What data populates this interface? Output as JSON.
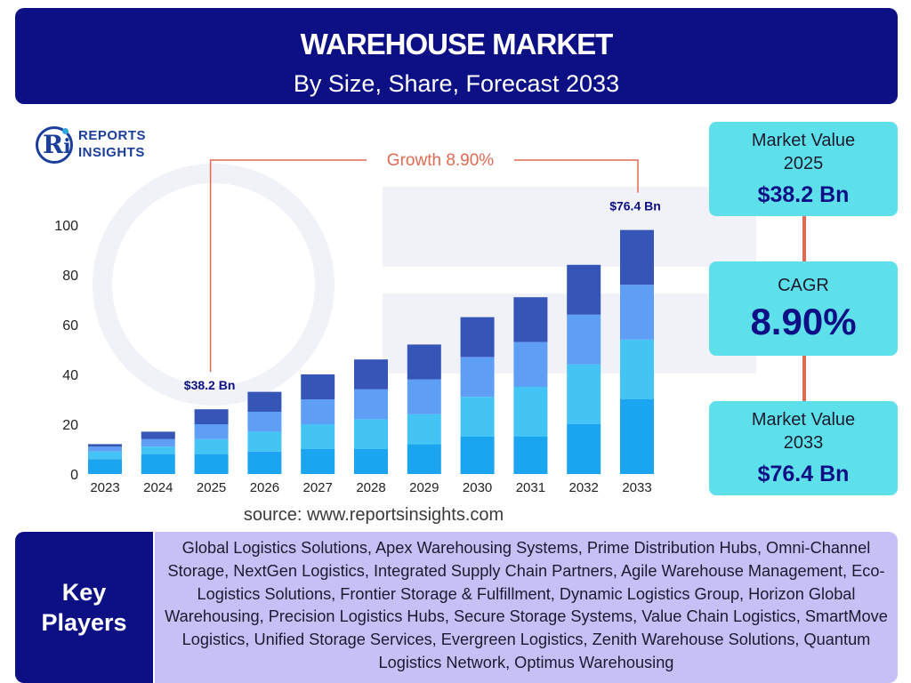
{
  "header": {
    "title": "WAREHOUSE MARKET",
    "subtitle": "By Size, Share, Forecast 2033"
  },
  "logo": {
    "line1": "REPORTS",
    "line2": "INSIGHTS",
    "monogram": "Ri"
  },
  "chart_data": {
    "type": "bar",
    "stacked": true,
    "categories": [
      "2023",
      "2024",
      "2025",
      "2026",
      "2027",
      "2028",
      "2029",
      "2030",
      "2031",
      "2032",
      "2033"
    ],
    "series": [
      {
        "values": [
          6,
          8,
          8,
          9,
          10,
          10,
          12,
          15,
          15,
          20,
          30
        ],
        "color": "#1ba4f0"
      },
      {
        "values": [
          3,
          3,
          6,
          8,
          10,
          12,
          12,
          16,
          20,
          24,
          24
        ],
        "color": "#44c4f4"
      },
      {
        "values": [
          2,
          3,
          6,
          8,
          10,
          12,
          14,
          16,
          18,
          20,
          22
        ],
        "color": "#5f9ef5"
      },
      {
        "values": [
          1,
          3,
          6,
          8,
          10,
          12,
          14,
          16,
          18,
          20,
          22
        ],
        "color": "#3556b6"
      }
    ],
    "ylim": [
      0,
      100
    ],
    "yticks": [
      0,
      20,
      40,
      60,
      80,
      100
    ],
    "grid": false,
    "legend": "none",
    "annotations": [
      {
        "category": "2025",
        "text": "$38.2 Bn"
      },
      {
        "category": "2033",
        "text": "$76.4 Bn"
      }
    ],
    "growth_label": "Growth  8.90%",
    "growth_color": "#e06a52"
  },
  "panels": {
    "value_2025": {
      "label_line1": "Market Value",
      "label_line2": "2025",
      "value": "$38.2 Bn"
    },
    "cagr": {
      "label": "CAGR",
      "value": "8.90%"
    },
    "value_2033": {
      "label_line1": "Market Value",
      "label_line2": "2033",
      "value": "$76.4 Bn"
    }
  },
  "source": "source: www.reportsinsights.com",
  "key_players": {
    "heading_line1": "Key",
    "heading_line2": "Players",
    "list": "Global Logistics Solutions, Apex Warehousing Systems, Prime Distribution Hubs, Omni-Channel Storage, NextGen Logistics, Integrated Supply Chain Partners, Agile Warehouse Management, Eco-Logistics Solutions, Frontier Storage & Fulfillment, Dynamic Logistics Group, Horizon Global Warehousing, Precision Logistics Hubs, Secure Storage Systems, Value Chain Logistics, SmartMove Logistics, Unified Storage Services, Evergreen Logistics, Zenith Warehouse Solutions, Quantum Logistics Network, Optimus Warehousing"
  },
  "colors": {
    "navy": "#0d0f85",
    "panel": "#5ee0ea",
    "players_bg": "#c6c0f6",
    "accent": "#e06a52"
  }
}
